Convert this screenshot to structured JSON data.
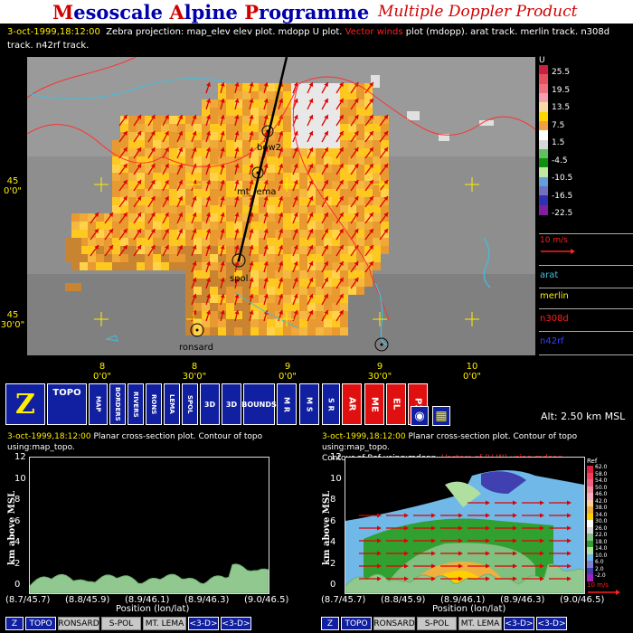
{
  "header": {
    "title_parts": [
      "M",
      "esoscale ",
      "A",
      "lpine ",
      "P",
      "rogramme"
    ],
    "subtitle": "Multiple Doppler Product"
  },
  "description": {
    "datetime": "3-oct-1999,18:12:00",
    "text1": "Zebra projection: map_elev elev plot. mdopp U plot.",
    "vector": "Vector winds",
    "text2": "plot (mdopp). arat track.   merlin track.   n308d track.   n42rf track."
  },
  "map": {
    "lat_labels": [
      {
        "deg": "45",
        "min": "0'0\""
      },
      {
        "deg": "45",
        "min": "30'0\""
      }
    ],
    "lon_labels": [
      {
        "deg": "8",
        "min": "0'0\""
      },
      {
        "deg": "8",
        "min": "30'0\""
      },
      {
        "deg": "9",
        "min": "0'0\""
      },
      {
        "deg": "9",
        "min": "30'0\""
      },
      {
        "deg": "10",
        "min": "0'0\""
      }
    ],
    "sites": [
      "bow2",
      "mt_lema",
      "spol",
      "ronsard"
    ]
  },
  "colorbar": {
    "title": "U",
    "labels": [
      "25.5",
      "19.5",
      "13.5",
      "7.5",
      "1.5",
      "-4.5",
      "-10.5",
      "-16.5",
      "-22.5"
    ],
    "colors": [
      "#cc2040",
      "#e65060",
      "#f07080",
      "#f4a0b0",
      "#f8d8a0",
      "#ffd700",
      "#f0a040",
      "#ffffff",
      "#d8d8d8",
      "#60c060",
      "#109010",
      "#c0e8a0",
      "#60a0e0",
      "#7070c0",
      "#3030b0",
      "#8020a0"
    ]
  },
  "legend": {
    "vector_scale": "10 m/s",
    "tracks": [
      {
        "name": "arat",
        "color": "#40c0e0"
      },
      {
        "name": "merlin",
        "color": "#ffee00"
      },
      {
        "name": "n308d",
        "color": "#ff2020"
      },
      {
        "name": "n42rf",
        "color": "#3040ff"
      }
    ]
  },
  "toolbar": {
    "buttons": [
      {
        "id": "zebra",
        "label": "Z"
      },
      {
        "id": "topo",
        "label": "TOPO"
      },
      {
        "id": "map",
        "label": "MAP"
      },
      {
        "id": "borders",
        "label": "BORDERS"
      },
      {
        "id": "rivers",
        "label": "RIVERS"
      },
      {
        "id": "ronsard",
        "label": "RONS"
      },
      {
        "id": "lema",
        "label": "LEMA"
      },
      {
        "id": "spol",
        "label": "SPOL"
      },
      {
        "id": "3d1",
        "label": "3D"
      },
      {
        "id": "3d2",
        "label": "3D"
      },
      {
        "id": "bounds",
        "label": "BOUNDS"
      },
      {
        "id": "m_r",
        "label": "M R"
      },
      {
        "id": "m_s",
        "label": "M S"
      },
      {
        "id": "s_r",
        "label": "S R"
      },
      {
        "id": "arat",
        "label": "AR"
      },
      {
        "id": "merlin",
        "label": "ME"
      },
      {
        "id": "electra",
        "label": "EL"
      },
      {
        "id": "p3",
        "label": "P3"
      },
      {
        "id": "target",
        "label": ""
      },
      {
        "id": "grid",
        "label": ""
      }
    ],
    "altitude": "Alt: 2.50 km MSL"
  },
  "left_plot": {
    "datetime": "3-oct-1999,18:12:00",
    "title": "Planar cross-section plot. Contour of topo using:map_topo.",
    "ylabel": "km above MSL",
    "xlabel": "Position (lon/lat)",
    "yticks": [
      "12",
      "10",
      "8",
      "6",
      "4",
      "2",
      "0"
    ],
    "xticks": [
      "(8.7/45.7)",
      "(8.8/45.9)",
      "(8.9/46.1)",
      "(8.9/46.3)",
      "(9.0/46.5)"
    ]
  },
  "right_plot": {
    "datetime": "3-oct-1999,18:12:00",
    "title1": "Planar cross-section plot. Contour of topo using:map_topo.",
    "title2a": "Contour of Ref using:mdopp.",
    "title2b": "Vectors of (V,W) using:mdopp.",
    "ylabel": "km above MSL",
    "xlabel": "Position (lon/lat)",
    "yticks": [
      "12",
      "10",
      "8",
      "6",
      "4",
      "2",
      "0"
    ],
    "xticks": [
      "(8.7/45.7)",
      "(8.8/45.9)",
      "(8.9/46.1)",
      "(8.9/46.3)",
      "(9.0/46.5)"
    ],
    "ref_title": "Ref",
    "ref_labels": [
      "62.0",
      "58.0",
      "54.0",
      "50.0",
      "46.0",
      "42.0",
      "38.0",
      "34.0",
      "30.0",
      "26.0",
      "22.0",
      "18.0",
      "14.0",
      "10.0",
      "6.0",
      "2.0",
      "-2.0"
    ],
    "ref_colors": [
      "#e02040",
      "#f04060",
      "#f06080",
      "#f090a0",
      "#f8b0c0",
      "#f8d0a0",
      "#f0b040",
      "#ffd000",
      "#ffffff",
      "#d8d8d8",
      "#80c080",
      "#30a030",
      "#b0e0a0",
      "#70b8e8",
      "#8080d0",
      "#4040b0",
      "#a020c0"
    ],
    "vector_scale": "10 m/s"
  },
  "bottom_left": [
    "Z",
    "TOPO",
    "RONSARD",
    "S-POL",
    "MT. LEMA",
    "<3-D>",
    "<3-D>"
  ],
  "bottom_right": [
    "Z",
    "TOPO",
    "RONSARD",
    "S-POL",
    "MT. LEMA",
    "<3-D>",
    "<3-D>"
  ]
}
